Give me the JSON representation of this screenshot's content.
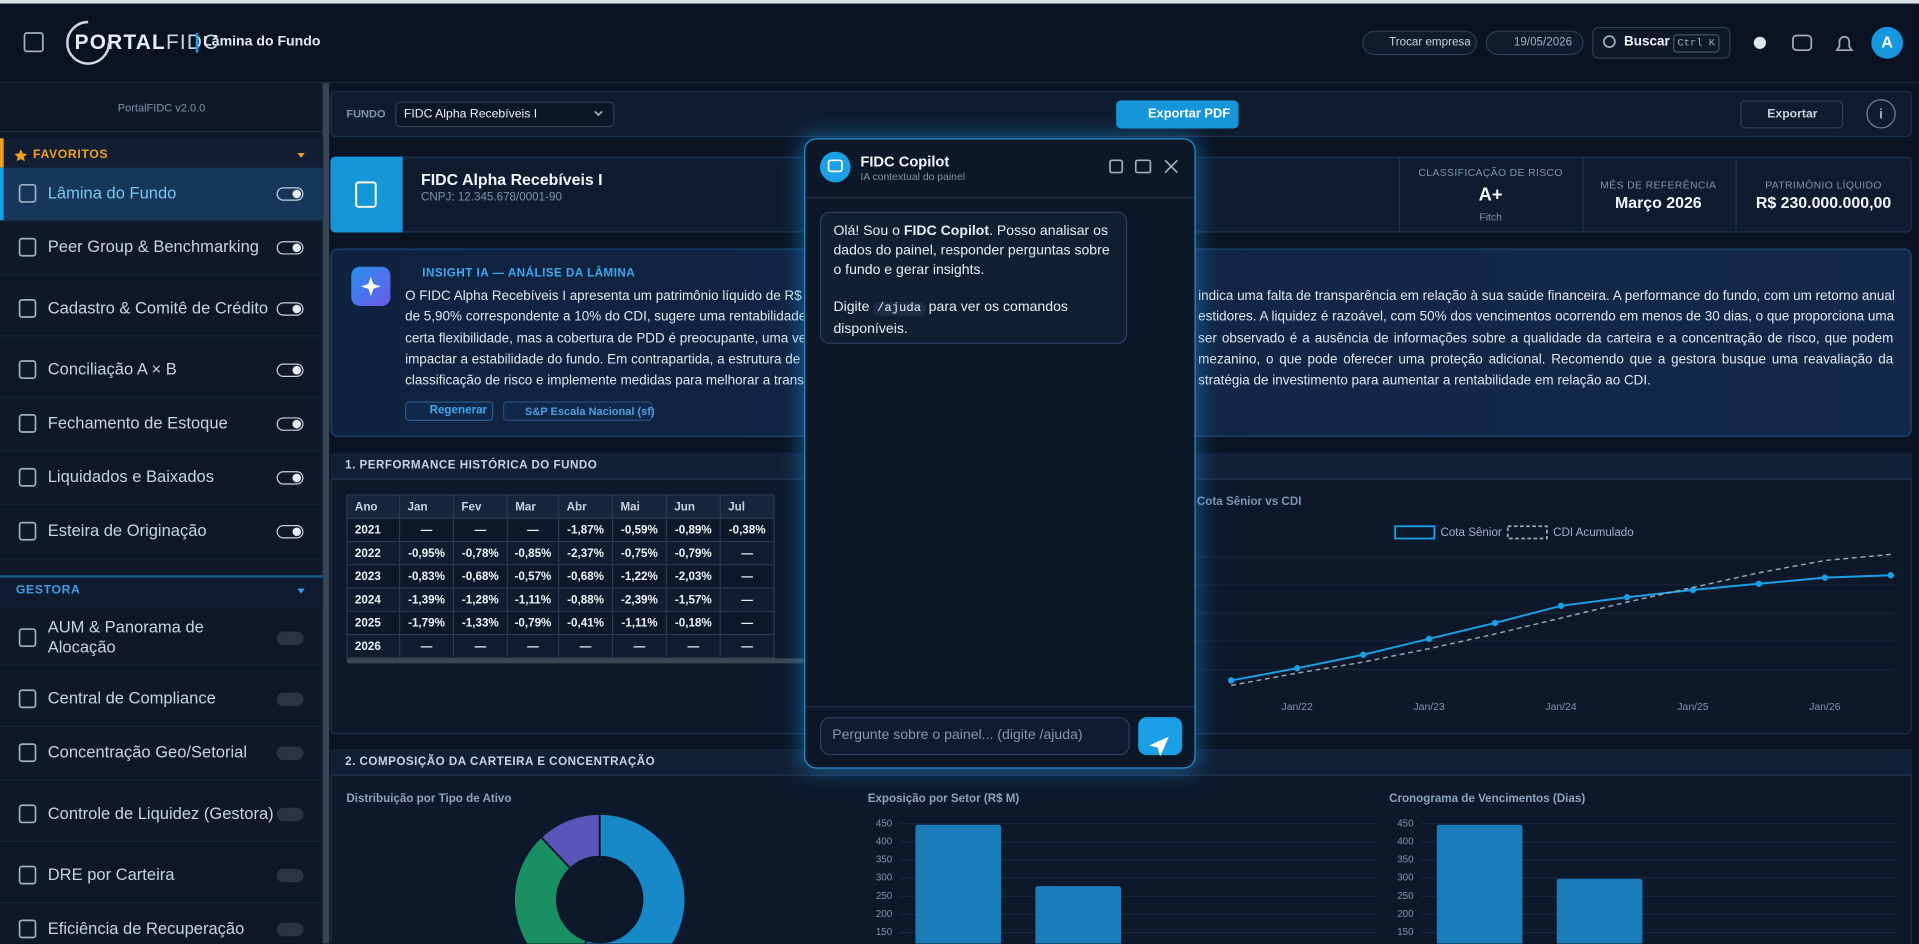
{
  "header": {
    "logo_a": "PORTAL",
    "logo_b": "FIDC",
    "page": "Lâmina do Fundo",
    "switch_company": "Trocar empresa",
    "date": "19/05/2026",
    "search": "Buscar",
    "shortcut": "Ctrl K",
    "avatar": "A"
  },
  "sidebar": {
    "version": "PortalFIDC v2.0.0",
    "sections": [
      {
        "title": "FAVORITOS",
        "items": [
          "Lâmina do Fundo",
          "Peer Group & Benchmarking",
          "Cadastro & Comitê de Crédito",
          "Conciliação A × B",
          "Fechamento de Estoque",
          "Liquidados e Baixados",
          "Esteira de Originação"
        ]
      },
      {
        "title": "GESTORA",
        "items": [
          "AUM & Panorama de Alocação",
          "Central de Compliance",
          "Concentração Geo/Setorial",
          "Controle de Liquidez (Gestora)",
          "DRE por Carteira",
          "Eficiência de Recuperação"
        ]
      }
    ]
  },
  "toolbar": {
    "fund_label": "FUNDO",
    "fund_select": "FIDC Alpha Recebíveis I",
    "export_pdf": "Exportar PDF",
    "export": "Exportar"
  },
  "fund": {
    "name": "FIDC Alpha Recebíveis I",
    "cnpj": "CNPJ: 12.345.678/0001-90",
    "stats": [
      {
        "label": "CLASSIFICAÇÃO DE RISCO",
        "value": "A+",
        "note": "Fitch"
      },
      {
        "label": "MÊS DE REFERÊNCIA",
        "value": "Março 2026"
      },
      {
        "label": "PATRIMÔNIO LÍQUIDO",
        "value": "R$ 230.000.000,00"
      }
    ]
  },
  "insight": {
    "title": "INSIGHT IA — ANÁLISE DA LÂMINA",
    "lines_left": [
      "O FIDC Alpha Recebíveis I apresenta um patrimônio líquido de R$ 2",
      "de 5,90% correspondente a 10% do CDI, sugere uma rentabilidade",
      "certa flexibilidade, mas a cobertura de PDD é preocupante, uma vez",
      "impactar a estabilidade do fundo. Em contrapartida, a estrutura de c",
      "classificação de risco e implemente medidas para melhorar a transp"
    ],
    "lines_right": [
      "indica uma falta de transparência em relação à sua saúde financeira. A performance do fundo, com um retorno anual",
      "estidores. A liquidez é razoável, com 50% dos vencimentos ocorrendo em menos de 30 dias, o que proporciona uma",
      "ser observado é a ausência de informações sobre a qualidade da carteira e a concentração de risco, que podem",
      "mezanino, o que pode oferecer uma proteção adicional. Recomendo que a gestora busque uma reavaliação da",
      "stratégia de investimento para aumentar a rentabilidade em relação ao CDI."
    ],
    "regenerate": "Regenerar",
    "scale": "S&P Escala Nacional (sf)"
  },
  "performance": {
    "title": "1. PERFORMANCE HISTÓRICA DO FUNDO",
    "table": {
      "header": [
        "Ano",
        "Jan",
        "Fev",
        "Mar",
        "Abr",
        "Mai",
        "Jun",
        "Jul"
      ],
      "rows": [
        [
          "2021",
          "—",
          "—",
          "—",
          "-1,87%",
          "-0,59%",
          "-0,89%",
          "-0,38%"
        ],
        [
          "2022",
          "-0,95%",
          "-0,78%",
          "-0,85%",
          "-2,37%",
          "-0,75%",
          "-0,79%",
          "—"
        ],
        [
          "2023",
          "-0,83%",
          "-0,68%",
          "-0,57%",
          "-0,68%",
          "-1,22%",
          "-2,03%",
          "—"
        ],
        [
          "2024",
          "-1,39%",
          "-1,28%",
          "-1,11%",
          "-0,88%",
          "-2,39%",
          "-1,57%",
          "—"
        ],
        [
          "2025",
          "-1,79%",
          "-1,33%",
          "-0,79%",
          "-0,41%",
          "-1,11%",
          "-0,18%",
          "—"
        ],
        [
          "2026",
          "—",
          "—",
          "—",
          "—",
          "—",
          "—",
          "—"
        ]
      ]
    }
  },
  "composition": {
    "title": "2. COMPOSIÇÃO DA CARTEIRA E CONCENTRAÇÃO"
  },
  "copilot": {
    "title": "FIDC Copilot",
    "subtitle": "IA contextual do painel",
    "msg_pre": "Olá! Sou o ",
    "msg_bold": "FIDC Copilot",
    "msg_post": ". Posso analisar os dados do painel, responder perguntas sobre o fundo e gerar insights.",
    "hint_pre": "Digite ",
    "hint_code": "/ajuda",
    "hint_post": " para ver os comandos disponíveis.",
    "placeholder": "Pergunte sobre o painel... (digite /ajuda)"
  },
  "chart_data": [
    {
      "type": "line",
      "title": "Cota Sênior vs CDI",
      "categories": [
        null,
        "Jan/22",
        null,
        "Jan/23",
        null,
        "Jan/24",
        null,
        "Jan/25",
        null,
        "Jan/26",
        null
      ],
      "series": [
        {
          "name": "Cota Sênior",
          "color": "#1b9fe6",
          "values": [
            7.2,
            15.2,
            24,
            34.4,
            44.8,
            56,
            61.6,
            66.4,
            70.4,
            74.4,
            76
          ]
        },
        {
          "name": "CDI Acumulado",
          "color": "#9aa6b6",
          "values": [
            4,
            12,
            19.2,
            28,
            37.6,
            48,
            58.4,
            68,
            77.6,
            85.6,
            89.6
          ]
        }
      ],
      "ylim": [
        0,
        100
      ]
    },
    {
      "type": "pie",
      "title": "Distribuição por Tipo de Ativo",
      "values": [
        55,
        33,
        12
      ],
      "colors": [
        "#1788c8",
        "#1a8f63",
        "#5a55b8"
      ]
    },
    {
      "type": "bar",
      "title": "Exposição por Setor (R$ M)",
      "categories": [
        null,
        null
      ],
      "values": [
        447,
        278
      ],
      "color": "#1a7cb8",
      "ylim": [
        0,
        470
      ],
      "yticks": [
        150,
        200,
        250,
        300,
        350,
        400,
        450
      ],
      "grid": true
    },
    {
      "type": "bar",
      "title": "Cronograma de Vencimentos (Dias)",
      "categories": [
        null,
        null
      ],
      "values": [
        447,
        298
      ],
      "color": "#1a7cb8",
      "ylim": [
        0,
        470
      ],
      "yticks": [
        150,
        200,
        250,
        300,
        350,
        400,
        450
      ],
      "grid": true
    }
  ]
}
